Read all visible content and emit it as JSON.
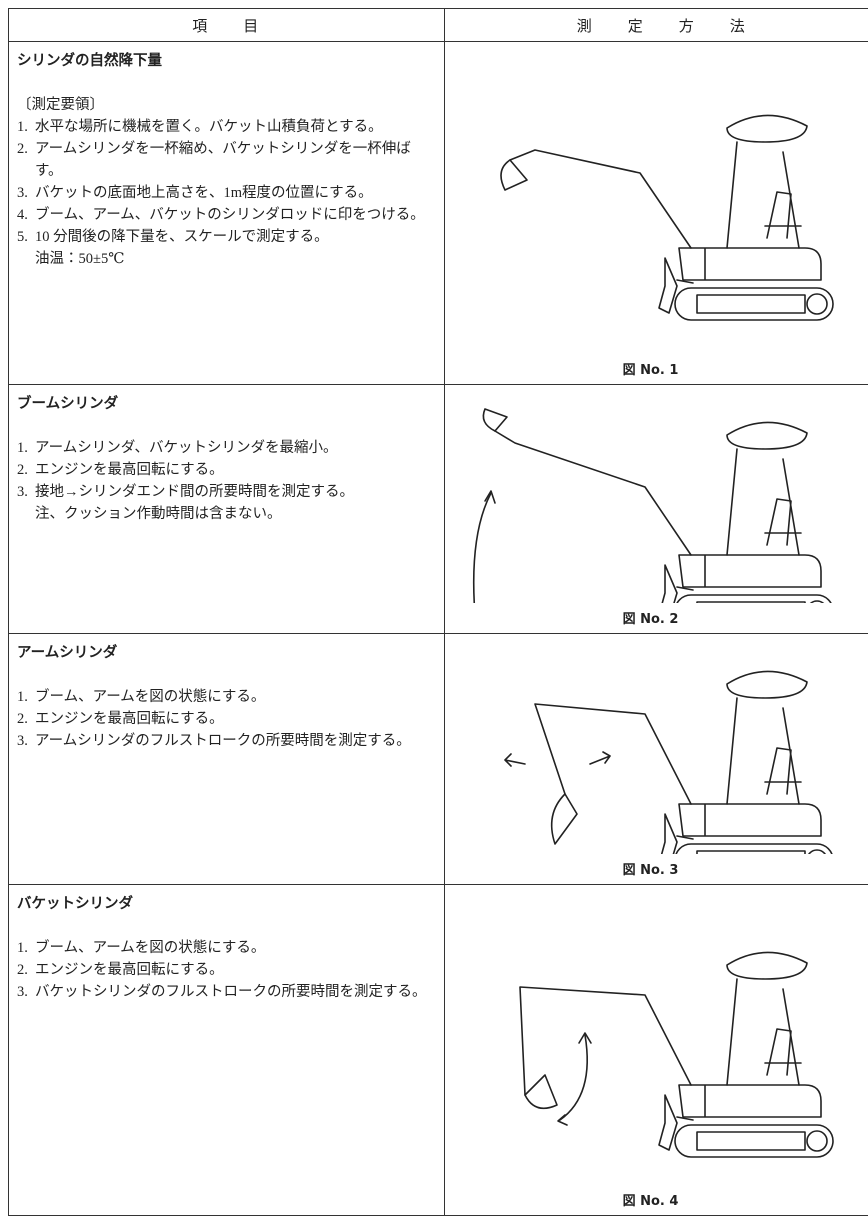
{
  "table": {
    "headers": [
      "項　　目",
      "測　　定　　方　　法"
    ],
    "rows": [
      {
        "title": "シリンダの自然降下量",
        "note": "〔測定要領〕",
        "steps": [
          {
            "num": "1.",
            "text": "水平な場所に機械を置く。バケット山積負荷とする。"
          },
          {
            "num": "2.",
            "text": "アームシリンダを一杯縮め、バケットシリンダを一杯伸ばす。"
          },
          {
            "num": "3.",
            "text": "バケットの底面地上高さを、1m程度の位置にする。"
          },
          {
            "num": "4.",
            "text": "ブーム、アーム、バケットのシリンダロッドに印をつける。"
          },
          {
            "num": "5.",
            "text": "10 分間後の降下量を、スケールで測定する。"
          }
        ],
        "extra": "油温：50±5℃",
        "figure": "図 No. 1"
      },
      {
        "title": "ブームシリンダ",
        "steps": [
          {
            "num": "1.",
            "text": "アームシリンダ、バケットシリンダを最縮小。"
          },
          {
            "num": "2.",
            "text": "エンジンを最高回転にする。"
          },
          {
            "num": "3.",
            "text": "接地→シリンダエンド間の所要時間を測定する。"
          }
        ],
        "extra": "注、クッション作動時間は含まない。",
        "figure": "図 No. 2"
      },
      {
        "title": "アームシリンダ",
        "steps": [
          {
            "num": "1.",
            "text": "ブーム、アームを図の状態にする。"
          },
          {
            "num": "2.",
            "text": "エンジンを最高回転にする。"
          },
          {
            "num": "3.",
            "text": "アームシリンダのフルストロークの所要時間を測定する。"
          }
        ],
        "figure": "図 No. 3"
      },
      {
        "title": "バケットシリンダ",
        "steps": [
          {
            "num": "1.",
            "text": "ブーム、アームを図の状態にする。"
          },
          {
            "num": "2.",
            "text": "エンジンを最高回転にする。"
          },
          {
            "num": "3.",
            "text": "バケットシリンダのフルストロークの所要時間を測定する。"
          }
        ],
        "figure": "図 No. 4"
      }
    ]
  }
}
